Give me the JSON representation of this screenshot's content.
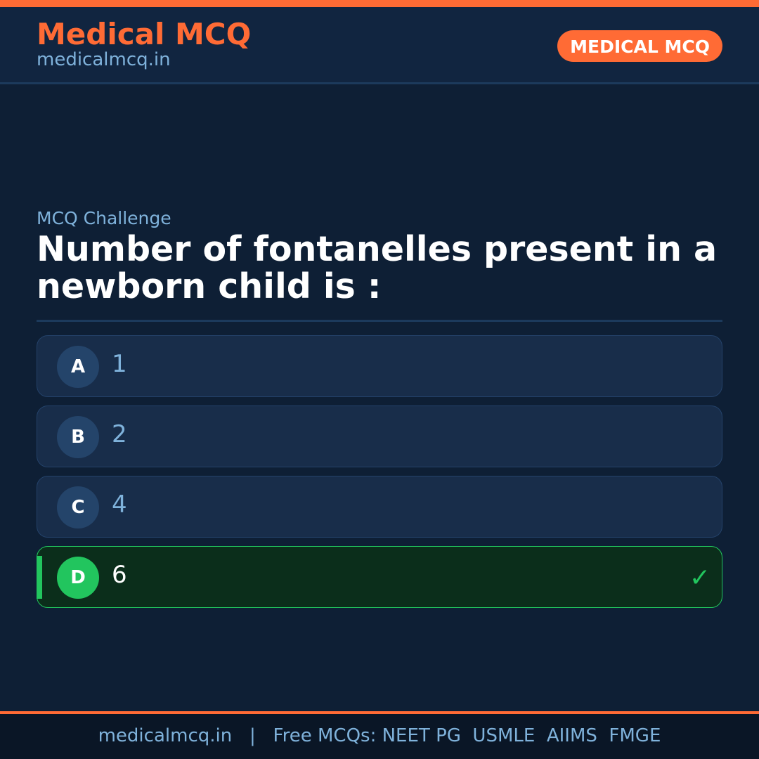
{
  "header": {
    "brand": "Medical MCQ",
    "site": "medicalmcq.in",
    "badge": "MEDICAL MCQ"
  },
  "quiz": {
    "kicker": "MCQ Challenge",
    "question": "Number of fontanelles present in a newborn child is :",
    "options": [
      {
        "letter": "A",
        "text": "1"
      },
      {
        "letter": "B",
        "text": "2"
      },
      {
        "letter": "C",
        "text": "4"
      },
      {
        "letter": "D",
        "text": "6"
      }
    ],
    "correct": "D"
  },
  "footer": {
    "text": "medicalmcq.in   |   Free MCQs: NEET PG  USMLE  AIIMS  FMGE"
  },
  "colors": {
    "accent": "#ff6b35",
    "correct": "#22c55e",
    "background": "#0e1f35"
  }
}
